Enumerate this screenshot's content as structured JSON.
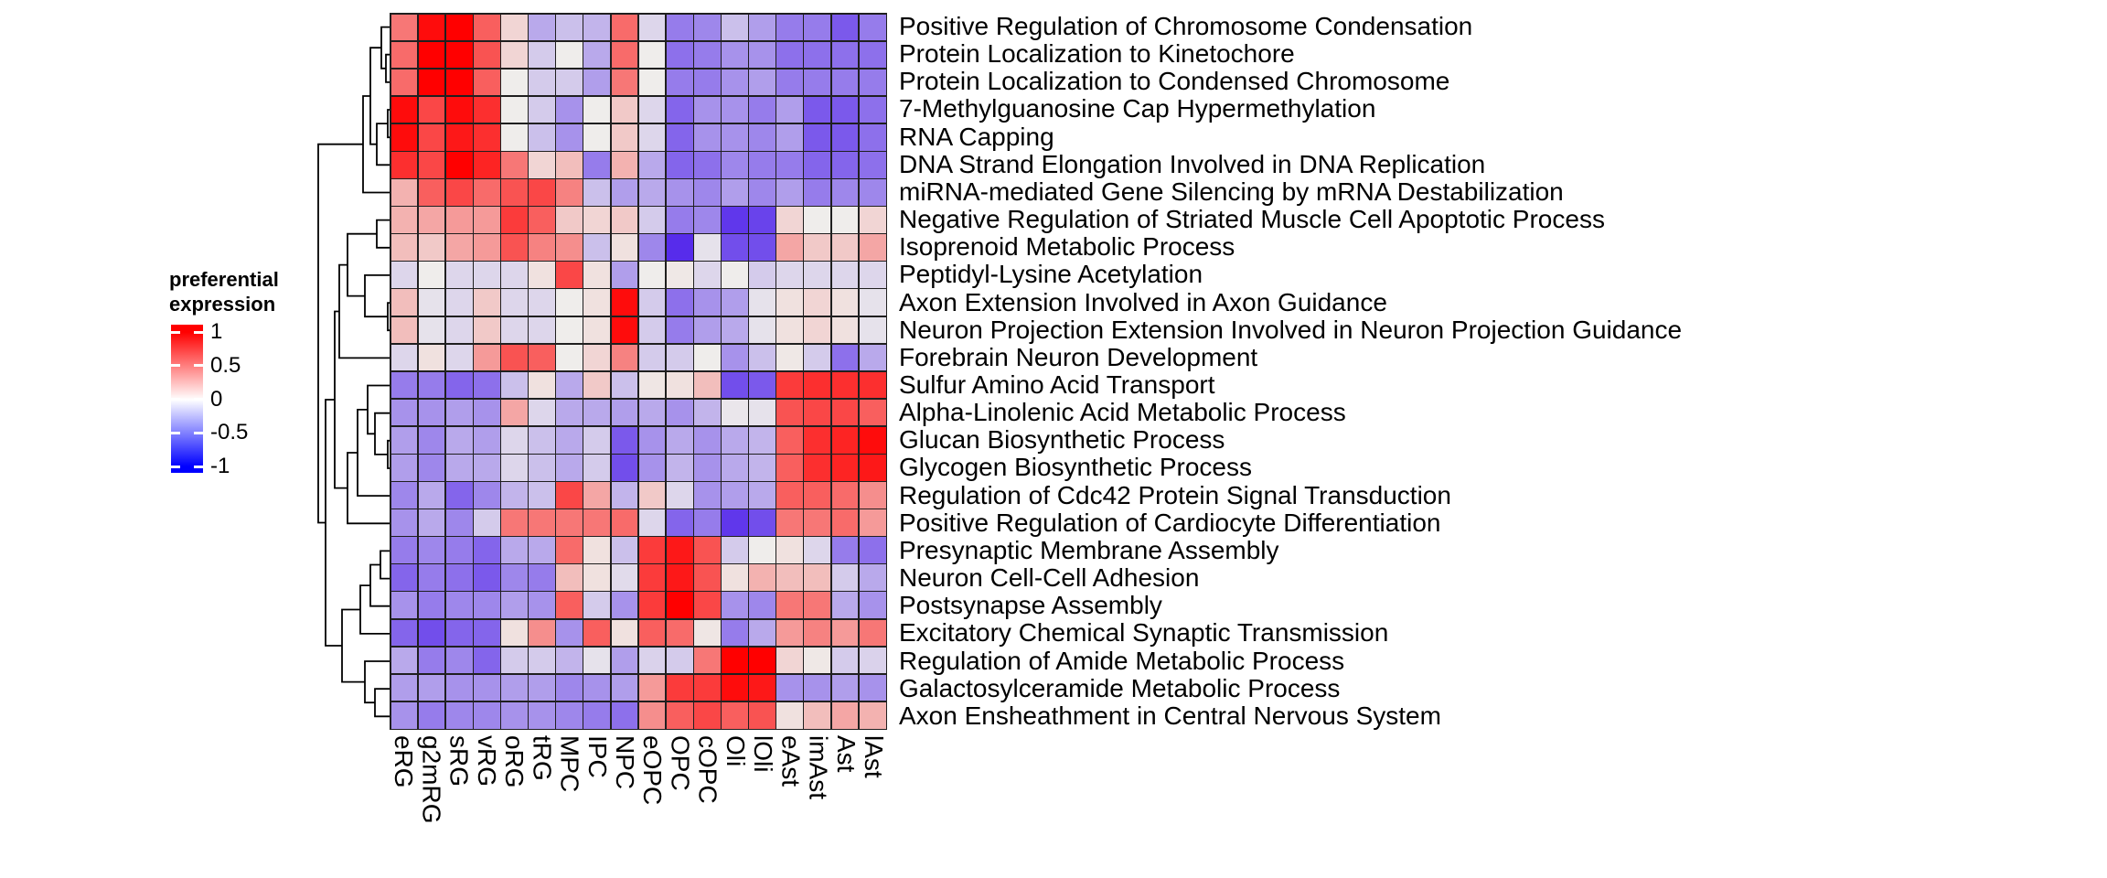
{
  "chart_data": {
    "type": "heatmap",
    "description": "Row-clustered heatmap of preferential expression of GO biological processes across neural cell types",
    "legend": {
      "title_line1": "preferential",
      "title_line2": "expression",
      "tick_labels": [
        "1",
        "0.5",
        "0",
        "-0.5",
        "-1"
      ],
      "tick_values": [
        1,
        0.5,
        0,
        -0.5,
        -1
      ],
      "colors": {
        "max": "#FF0000",
        "mid": "#FFFFFF",
        "min": "#0000FF"
      }
    },
    "value_range": [
      -1,
      1
    ],
    "row_dendrogram": true,
    "grid_line_color": "#1f1f1f",
    "columns": [
      "eRG",
      "g2mRG",
      "sRG",
      "vRG",
      "oRG",
      "tRG",
      "MPC",
      "IPC",
      "NPC",
      "eOPC",
      "OPC",
      "cOPC",
      "Oli",
      "lOli",
      "eAst",
      "imAst",
      "Ast",
      "lAst"
    ],
    "rows": [
      "Positive Regulation of Chromosome Condensation",
      "Protein Localization to Kinetochore",
      "Protein Localization to Condensed Chromosome",
      "7-Methylguanosine Cap Hypermethylation",
      "RNA Capping",
      "DNA Strand Elongation Involved in DNA Replication",
      "miRNA-mediated Gene Silencing by mRNA Destabilization",
      "Negative Regulation of Striated Muscle Cell Apoptotic Process",
      "Isoprenoid Metabolic Process",
      "Peptidyl-Lysine Acetylation",
      "Axon Extension Involved in Axon Guidance",
      "Neuron Projection Extension Involved in Neuron Projection Guidance",
      "Forebrain Neuron Development",
      "Sulfur Amino Acid Transport",
      "Alpha-Linolenic Acid Metabolic Process",
      "Glucan Biosynthetic Process",
      "Glycogen Biosynthetic Process",
      "Regulation of Cdc42 Protein Signal Transduction",
      "Positive Regulation of Cardiocyte Differentiation",
      "Presynaptic Membrane Assembly",
      "Neuron Cell-Cell Adhesion",
      "Postsynapse Assembly",
      "Excitatory Chemical Synaptic Transmission",
      "Regulation of Amide Metabolic Process",
      "Galactosylceramide Metabolic Process",
      "Axon Ensheathment in Central Nervous System"
    ],
    "values": [
      [
        0.5,
        0.95,
        1.0,
        0.6,
        0.1,
        -0.3,
        -0.2,
        -0.25,
        0.55,
        -0.1,
        -0.5,
        -0.45,
        -0.2,
        -0.35,
        -0.5,
        -0.5,
        -0.65,
        -0.5
      ],
      [
        0.55,
        1.0,
        1.0,
        0.65,
        0.1,
        -0.15,
        0.0,
        -0.3,
        0.55,
        0.0,
        -0.55,
        -0.5,
        -0.4,
        -0.4,
        -0.55,
        -0.55,
        -0.55,
        -0.55
      ],
      [
        0.55,
        1.0,
        1.0,
        0.6,
        0.0,
        -0.15,
        -0.15,
        -0.35,
        0.5,
        0.0,
        -0.5,
        -0.5,
        -0.4,
        -0.35,
        -0.5,
        -0.5,
        -0.5,
        -0.5
      ],
      [
        0.95,
        0.7,
        0.95,
        0.8,
        0.0,
        -0.15,
        -0.4,
        0.0,
        0.15,
        -0.1,
        -0.6,
        -0.4,
        -0.4,
        -0.5,
        -0.35,
        -0.65,
        -0.65,
        -0.55
      ],
      [
        0.95,
        0.7,
        0.9,
        0.8,
        0.0,
        -0.2,
        -0.4,
        0.0,
        0.15,
        -0.1,
        -0.6,
        -0.4,
        -0.4,
        -0.45,
        -0.35,
        -0.65,
        -0.65,
        -0.55
      ],
      [
        0.8,
        0.7,
        1.0,
        0.85,
        0.5,
        0.1,
        0.2,
        -0.5,
        0.25,
        -0.3,
        -0.6,
        -0.55,
        -0.45,
        -0.5,
        -0.5,
        -0.6,
        -0.6,
        -0.55
      ],
      [
        0.25,
        0.6,
        0.7,
        0.55,
        0.65,
        0.7,
        0.45,
        -0.2,
        -0.35,
        -0.3,
        -0.4,
        -0.45,
        -0.35,
        -0.45,
        -0.35,
        -0.5,
        -0.45,
        -0.45
      ],
      [
        0.25,
        0.3,
        0.35,
        0.35,
        0.75,
        0.6,
        0.15,
        0.1,
        0.15,
        -0.15,
        -0.5,
        -0.45,
        -0.8,
        -0.75,
        0.1,
        0.0,
        0.0,
        0.1
      ],
      [
        0.2,
        0.15,
        0.3,
        0.35,
        0.65,
        0.45,
        0.4,
        -0.2,
        0.05,
        -0.45,
        -0.85,
        -0.05,
        -0.7,
        -0.7,
        0.3,
        0.15,
        0.15,
        0.3
      ],
      [
        -0.1,
        0.0,
        -0.1,
        -0.1,
        -0.1,
        0.05,
        0.7,
        0.05,
        -0.35,
        0.0,
        0.02,
        -0.1,
        0.0,
        -0.15,
        -0.1,
        -0.1,
        -0.1,
        -0.1
      ],
      [
        0.2,
        -0.05,
        -0.1,
        0.15,
        -0.1,
        -0.1,
        0.0,
        0.05,
        0.95,
        -0.15,
        -0.55,
        -0.4,
        -0.35,
        -0.05,
        0.05,
        0.1,
        0.05,
        -0.05
      ],
      [
        0.2,
        -0.05,
        -0.1,
        0.15,
        -0.1,
        -0.1,
        0.0,
        0.05,
        0.95,
        -0.15,
        -0.5,
        -0.35,
        -0.3,
        -0.05,
        0.05,
        0.1,
        0.05,
        -0.05
      ],
      [
        -0.1,
        0.05,
        -0.1,
        0.35,
        0.65,
        0.6,
        0.0,
        0.1,
        0.45,
        -0.15,
        -0.15,
        0.0,
        -0.4,
        -0.2,
        0.02,
        -0.15,
        -0.55,
        -0.3
      ],
      [
        -0.5,
        -0.5,
        -0.6,
        -0.55,
        -0.2,
        0.05,
        -0.3,
        0.15,
        -0.2,
        0.03,
        0.05,
        0.2,
        -0.7,
        -0.65,
        0.75,
        0.8,
        0.8,
        0.8
      ],
      [
        -0.4,
        -0.4,
        -0.35,
        -0.4,
        0.3,
        -0.1,
        -0.3,
        -0.3,
        -0.35,
        -0.3,
        -0.4,
        -0.25,
        -0.03,
        -0.05,
        0.65,
        0.7,
        0.7,
        0.6
      ],
      [
        -0.35,
        -0.45,
        -0.3,
        -0.35,
        -0.1,
        -0.2,
        -0.3,
        -0.15,
        -0.65,
        -0.4,
        -0.3,
        -0.4,
        -0.3,
        -0.25,
        0.6,
        0.8,
        0.85,
        0.95
      ],
      [
        -0.35,
        -0.45,
        -0.3,
        -0.3,
        -0.1,
        -0.2,
        -0.3,
        -0.15,
        -0.7,
        -0.4,
        -0.25,
        -0.4,
        -0.3,
        -0.25,
        0.6,
        0.8,
        0.85,
        0.9
      ],
      [
        -0.45,
        -0.3,
        -0.6,
        -0.45,
        -0.25,
        -0.2,
        0.7,
        0.3,
        -0.25,
        0.15,
        -0.1,
        -0.4,
        -0.35,
        -0.3,
        0.6,
        0.6,
        0.55,
        0.4
      ],
      [
        -0.4,
        -0.3,
        -0.45,
        -0.15,
        0.5,
        0.5,
        0.5,
        0.5,
        0.55,
        -0.1,
        -0.6,
        -0.5,
        -0.8,
        -0.7,
        0.5,
        0.5,
        0.55,
        0.35
      ],
      [
        -0.5,
        -0.45,
        -0.5,
        -0.6,
        -0.3,
        -0.3,
        0.55,
        0.05,
        -0.2,
        0.75,
        0.9,
        0.65,
        -0.15,
        0.0,
        0.05,
        -0.1,
        -0.5,
        -0.55
      ],
      [
        -0.6,
        -0.5,
        -0.55,
        -0.65,
        -0.45,
        -0.5,
        0.2,
        0.05,
        -0.08,
        0.75,
        0.9,
        0.65,
        0.05,
        0.25,
        0.2,
        0.2,
        -0.15,
        -0.3
      ],
      [
        -0.4,
        -0.5,
        -0.45,
        -0.45,
        -0.35,
        -0.4,
        0.6,
        -0.15,
        -0.4,
        0.75,
        1.0,
        0.7,
        -0.4,
        -0.45,
        0.5,
        0.5,
        -0.3,
        -0.4
      ],
      [
        -0.6,
        -0.7,
        -0.6,
        -0.6,
        0.05,
        0.4,
        -0.4,
        0.6,
        0.05,
        0.6,
        0.55,
        0.03,
        -0.5,
        -0.3,
        0.35,
        0.45,
        0.35,
        0.5
      ],
      [
        -0.3,
        -0.5,
        -0.45,
        -0.6,
        -0.15,
        -0.15,
        -0.25,
        -0.05,
        -0.35,
        -0.12,
        -0.15,
        0.5,
        1.0,
        1.0,
        0.1,
        0.02,
        -0.15,
        -0.12
      ],
      [
        -0.35,
        -0.35,
        -0.4,
        -0.4,
        -0.35,
        -0.35,
        -0.45,
        -0.4,
        -0.35,
        0.35,
        0.75,
        0.75,
        0.95,
        0.9,
        -0.4,
        -0.4,
        -0.35,
        -0.4
      ],
      [
        -0.4,
        -0.5,
        -0.45,
        -0.45,
        -0.4,
        -0.4,
        -0.45,
        -0.5,
        -0.55,
        0.4,
        0.6,
        0.7,
        0.6,
        0.65,
        0.05,
        0.2,
        0.3,
        0.25
      ]
    ]
  }
}
